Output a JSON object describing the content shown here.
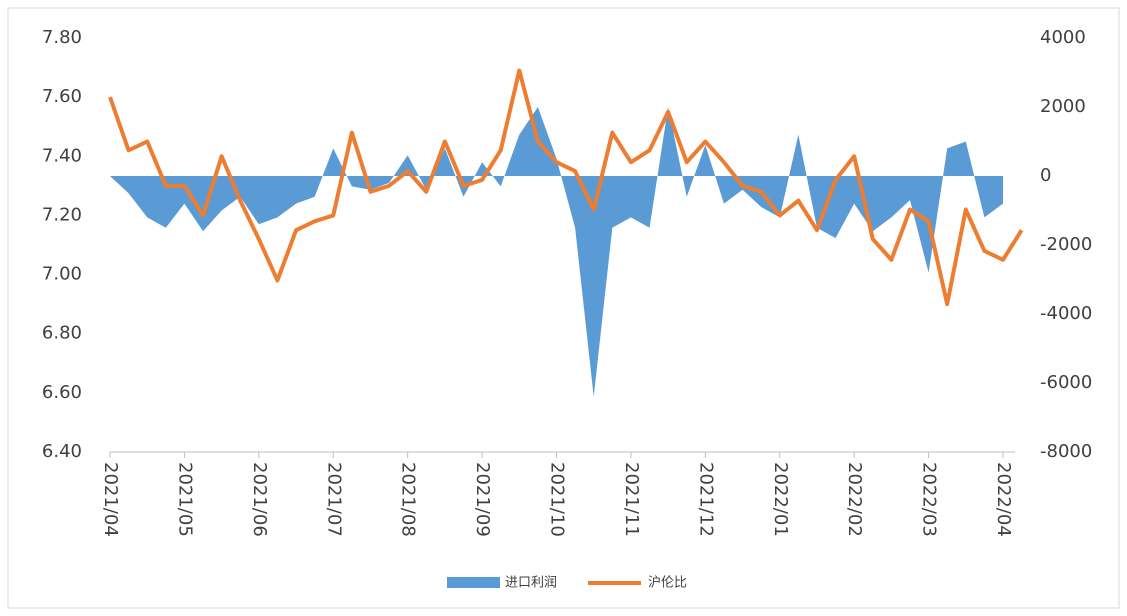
{
  "chart_data": {
    "type": "line",
    "categories": [
      "2021/04",
      null,
      null,
      null,
      "2021/05",
      null,
      null,
      null,
      "2021/06",
      null,
      null,
      null,
      "2021/07",
      null,
      null,
      null,
      "2021/08",
      null,
      null,
      null,
      "2021/09",
      null,
      null,
      null,
      "2021/10",
      null,
      null,
      null,
      "2021/11",
      null,
      null,
      null,
      "2021/12",
      null,
      null,
      null,
      "2022/01",
      null,
      null,
      null,
      "2022/02",
      null,
      null,
      null,
      "2022/03",
      null,
      null,
      null,
      "2022/04",
      null
    ],
    "series": [
      {
        "name": "进口利润",
        "color": "#5b9bd5",
        "axis": "y2",
        "kind": "area",
        "values": [
          0,
          -500,
          -1200,
          -1500,
          -800,
          -1600,
          -1000,
          -600,
          -1400,
          -1200,
          -800,
          -600,
          800,
          -300,
          -400,
          -200,
          600,
          -400,
          800,
          -600,
          400,
          -300,
          1200,
          2000,
          500,
          -1500,
          -6400,
          -1500,
          -1200,
          -1500,
          2000,
          -600,
          900,
          -800,
          -400,
          -900,
          -1200,
          1200,
          -1500,
          -1800,
          -800,
          -1600,
          -1200,
          -700,
          -2800,
          800,
          1000,
          -1200,
          -800,
          null
        ]
      },
      {
        "name": "沪伦比",
        "color": "#ed7d31",
        "axis": "y",
        "kind": "line",
        "values": [
          7.6,
          7.42,
          7.45,
          7.3,
          7.3,
          7.2,
          7.4,
          7.25,
          7.12,
          6.98,
          7.15,
          7.18,
          7.2,
          7.48,
          7.28,
          7.3,
          7.35,
          7.28,
          7.45,
          7.3,
          7.32,
          7.42,
          7.69,
          7.45,
          7.38,
          7.35,
          7.22,
          7.48,
          7.38,
          7.42,
          7.55,
          7.38,
          7.45,
          7.38,
          7.3,
          7.28,
          7.2,
          7.25,
          7.15,
          7.32,
          7.4,
          7.12,
          7.05,
          7.22,
          7.18,
          6.9,
          7.22,
          7.08,
          7.05,
          7.15
        ]
      }
    ],
    "ylim": [
      6.4,
      7.8
    ],
    "yticks": [
      {
        "value": 6.4,
        "label": "6.40"
      },
      {
        "value": 6.6,
        "label": "6.60"
      },
      {
        "value": 6.8,
        "label": "6.80"
      },
      {
        "value": 7.0,
        "label": "7.00"
      },
      {
        "value": 7.2,
        "label": "7.20"
      },
      {
        "value": 7.4,
        "label": "7.40"
      },
      {
        "value": 7.6,
        "label": "7.60"
      },
      {
        "value": 7.8,
        "label": "7.80"
      }
    ],
    "y2lim": [
      -8000,
      4000
    ],
    "y2ticks": [
      -8000,
      -6000,
      -4000,
      -2000,
      0,
      2000,
      4000
    ],
    "legend": "bottom"
  }
}
